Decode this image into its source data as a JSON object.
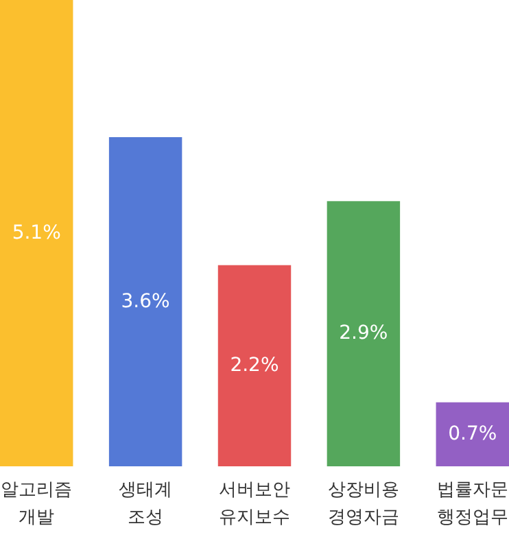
{
  "chart_data": {
    "type": "bar",
    "categories": [
      "알고리즘\n개발",
      "생태계\n조성",
      "서버보안\n유지보수",
      "상장비용\n경영자금",
      "법률자문\n행정업무"
    ],
    "values": [
      5.1,
      3.6,
      2.2,
      2.9,
      0.7
    ],
    "colors": [
      "#fbbf2e",
      "#5479d6",
      "#e45456",
      "#55a75c",
      "#9360c4"
    ],
    "value_labels": [
      "5.1%",
      "3.6%",
      "2.2%",
      "2.9%",
      "0.7%"
    ]
  }
}
